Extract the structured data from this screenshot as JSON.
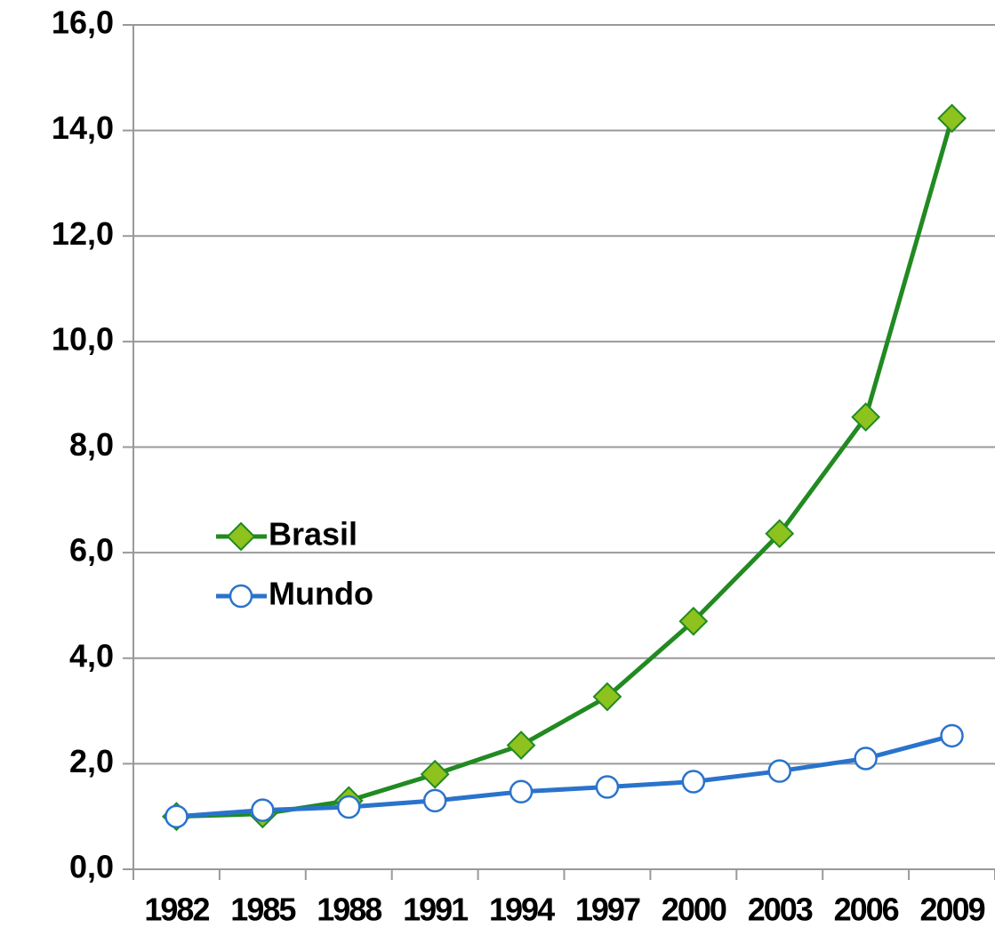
{
  "chart_data": {
    "type": "line",
    "categories": [
      "1982",
      "1985",
      "1988",
      "1991",
      "1994",
      "1997",
      "2000",
      "2003",
      "2006",
      "2009"
    ],
    "series": [
      {
        "name": "Brasil",
        "color": "#218a21",
        "marker": "diamond",
        "marker_color": "#8dc21f",
        "values": [
          1.0,
          1.05,
          1.3,
          1.8,
          2.35,
          3.27,
          4.7,
          6.36,
          8.57,
          14.23
        ]
      },
      {
        "name": "Mundo",
        "color": "#2a73cc",
        "marker": "circle",
        "marker_color": "#ffffff",
        "values": [
          1.0,
          1.12,
          1.18,
          1.3,
          1.47,
          1.56,
          1.66,
          1.86,
          2.1,
          2.53
        ]
      }
    ],
    "ylim": [
      0,
      16
    ],
    "yticks": [
      {
        "value": 0,
        "label": "0,0"
      },
      {
        "value": 2,
        "label": "2,0"
      },
      {
        "value": 4,
        "label": "4,0"
      },
      {
        "value": 6,
        "label": "6,0"
      },
      {
        "value": 8,
        "label": "8,0"
      },
      {
        "value": 10,
        "label": "10,0"
      },
      {
        "value": 12,
        "label": "12,0"
      },
      {
        "value": 14,
        "label": "14,0"
      },
      {
        "value": 16,
        "label": "16,0"
      }
    ],
    "grid": true,
    "legend": "left"
  }
}
